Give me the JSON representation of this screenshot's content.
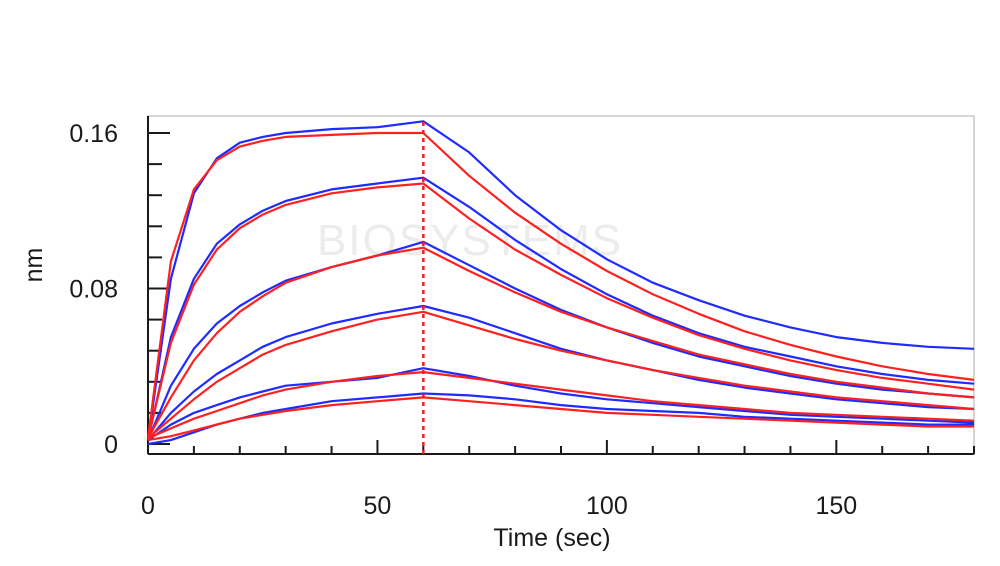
{
  "chart_data": {
    "type": "line",
    "title": "",
    "xlabel": "Time (sec)",
    "ylabel": "nm",
    "xlim": [
      0,
      180
    ],
    "ylim": [
      0,
      0.16
    ],
    "x_ticks": [
      0,
      50,
      100,
      150
    ],
    "x_tick_labels": [
      "0",
      "50",
      "100",
      "150"
    ],
    "y_ticks": [
      0,
      0.08,
      0.16
    ],
    "y_tick_labels": [
      "0",
      "0.08",
      "0.16"
    ],
    "grid": false,
    "legend": "none",
    "association_end_time": 60,
    "x": [
      0,
      5,
      10,
      15,
      20,
      25,
      30,
      40,
      50,
      60,
      70,
      80,
      90,
      100,
      110,
      120,
      130,
      140,
      150,
      160,
      170,
      180
    ],
    "series": [
      {
        "role": "measured",
        "values": [
          [
            0.002,
            0.085,
            0.129,
            0.147,
            0.155,
            0.158,
            0.16,
            0.162,
            0.163,
            0.166,
            0.15,
            0.128,
            0.11,
            0.095,
            0.083,
            0.074,
            0.066,
            0.06,
            0.055,
            0.052,
            0.05,
            0.049
          ],
          [
            0.002,
            0.055,
            0.085,
            0.103,
            0.113,
            0.12,
            0.125,
            0.131,
            0.134,
            0.137,
            0.122,
            0.105,
            0.09,
            0.077,
            0.066,
            0.057,
            0.05,
            0.045,
            0.04,
            0.036,
            0.033,
            0.031
          ],
          [
            0.002,
            0.03,
            0.049,
            0.062,
            0.071,
            0.078,
            0.084,
            0.091,
            0.097,
            0.104,
            0.092,
            0.08,
            0.069,
            0.06,
            0.052,
            0.045,
            0.04,
            0.035,
            0.031,
            0.028,
            0.026,
            0.024
          ],
          [
            0.002,
            0.016,
            0.027,
            0.036,
            0.043,
            0.05,
            0.055,
            0.062,
            0.067,
            0.071,
            0.065,
            0.057,
            0.049,
            0.043,
            0.038,
            0.033,
            0.029,
            0.026,
            0.023,
            0.021,
            0.019,
            0.018
          ],
          [
            0.002,
            0.01,
            0.016,
            0.02,
            0.024,
            0.027,
            0.03,
            0.032,
            0.034,
            0.039,
            0.035,
            0.03,
            0.026,
            0.023,
            0.021,
            0.019,
            0.017,
            0.015,
            0.014,
            0.013,
            0.012,
            0.011
          ],
          [
            0.0,
            0.002,
            0.006,
            0.01,
            0.013,
            0.016,
            0.018,
            0.022,
            0.024,
            0.026,
            0.025,
            0.023,
            0.02,
            0.018,
            0.017,
            0.016,
            0.014,
            0.013,
            0.012,
            0.011,
            0.01,
            0.01
          ]
        ],
        "color": "#1f2bff"
      },
      {
        "role": "fit",
        "values": [
          [
            0.003,
            0.094,
            0.131,
            0.146,
            0.153,
            0.156,
            0.158,
            0.159,
            0.16,
            0.16,
            0.138,
            0.119,
            0.103,
            0.089,
            0.077,
            0.067,
            0.058,
            0.051,
            0.045,
            0.04,
            0.036,
            0.033
          ],
          [
            0.003,
            0.052,
            0.082,
            0.1,
            0.111,
            0.118,
            0.123,
            0.129,
            0.132,
            0.134,
            0.116,
            0.1,
            0.087,
            0.075,
            0.065,
            0.056,
            0.049,
            0.043,
            0.038,
            0.034,
            0.031,
            0.028
          ],
          [
            0.003,
            0.024,
            0.043,
            0.057,
            0.068,
            0.076,
            0.083,
            0.091,
            0.097,
            0.101,
            0.089,
            0.078,
            0.068,
            0.06,
            0.053,
            0.046,
            0.041,
            0.036,
            0.032,
            0.029,
            0.026,
            0.024
          ],
          [
            0.003,
            0.013,
            0.023,
            0.032,
            0.039,
            0.046,
            0.051,
            0.058,
            0.064,
            0.068,
            0.061,
            0.054,
            0.048,
            0.043,
            0.038,
            0.034,
            0.03,
            0.027,
            0.024,
            0.022,
            0.02,
            0.018
          ],
          [
            0.003,
            0.008,
            0.013,
            0.017,
            0.021,
            0.025,
            0.028,
            0.032,
            0.035,
            0.037,
            0.034,
            0.031,
            0.028,
            0.025,
            0.022,
            0.02,
            0.018,
            0.016,
            0.015,
            0.014,
            0.013,
            0.012
          ],
          [
            0.002,
            0.004,
            0.007,
            0.01,
            0.013,
            0.015,
            0.017,
            0.02,
            0.022,
            0.024,
            0.022,
            0.02,
            0.018,
            0.016,
            0.015,
            0.014,
            0.013,
            0.012,
            0.011,
            0.01,
            0.009,
            0.009
          ]
        ],
        "color": "#ff2020"
      }
    ]
  },
  "watermark": {
    "text": "BIOSYSTEMS",
    "color": "#ececec"
  }
}
